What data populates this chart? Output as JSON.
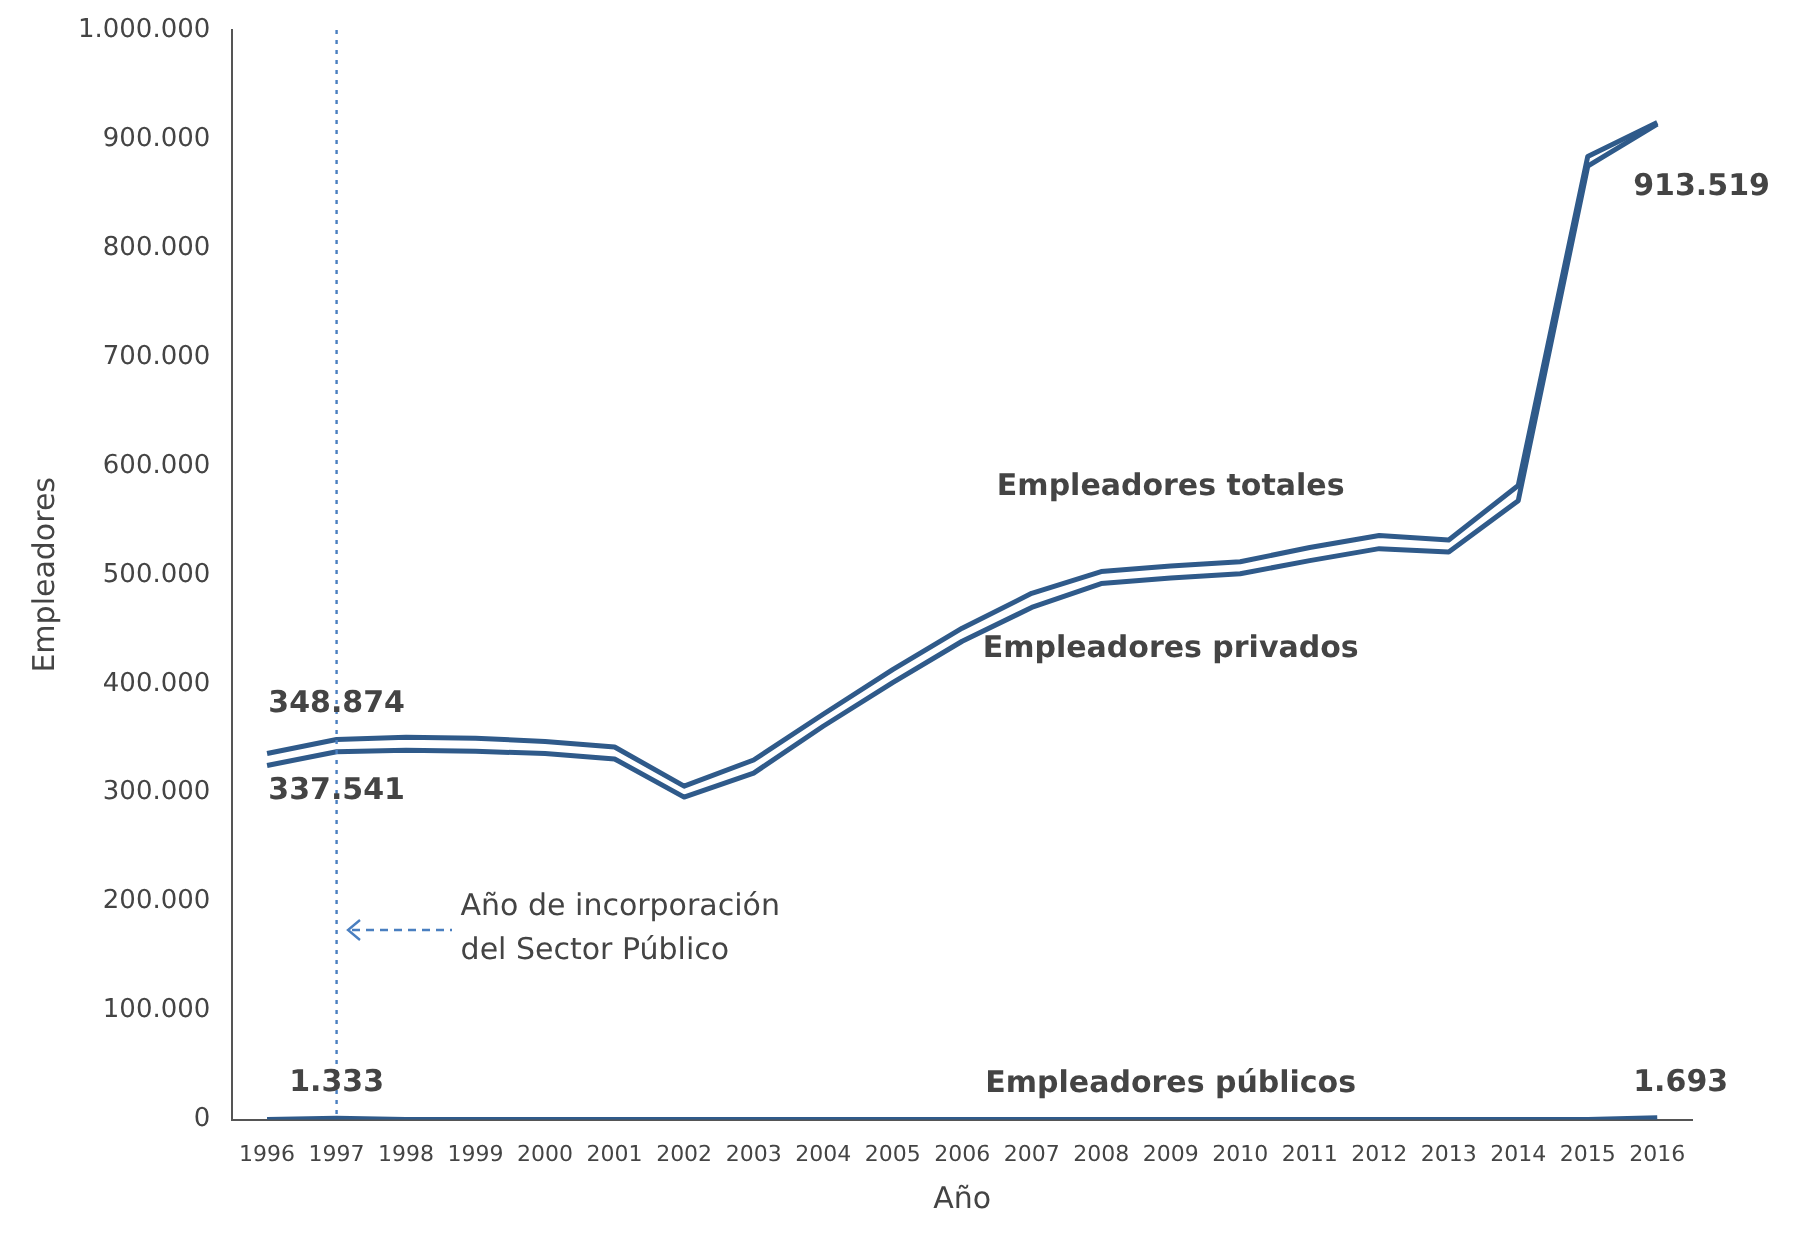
{
  "chart_data": {
    "type": "line",
    "xlabel": "Año",
    "ylabel": "Empleadores",
    "categories": [
      "1996",
      "1997",
      "1998",
      "1999",
      "2000",
      "2001",
      "2002",
      "2003",
      "2004",
      "2005",
      "2006",
      "2007",
      "2008",
      "2009",
      "2010",
      "2011",
      "2012",
      "2013",
      "2014",
      "2015",
      "2016"
    ],
    "series": [
      {
        "name": "Empleadores totales",
        "color": "#2f5a8a",
        "values": [
          336000,
          348874,
          351000,
          350000,
          347000,
          342000,
          306000,
          330000,
          372000,
          413000,
          451000,
          483000,
          503000,
          508000,
          512000,
          525000,
          536000,
          532000,
          582000,
          884000,
          915000
        ],
        "value_labels": [
          null,
          "348.874",
          null,
          null,
          null,
          null,
          null,
          null,
          null,
          null,
          null,
          null,
          null,
          null,
          null,
          null,
          null,
          null,
          null,
          null,
          null
        ]
      },
      {
        "name": "Empleadores privados",
        "color": "#2f5a8a",
        "values": [
          325000,
          337541,
          339000,
          338000,
          336000,
          331000,
          296000,
          318000,
          361000,
          401000,
          439000,
          470000,
          492000,
          497000,
          501000,
          513000,
          524000,
          521000,
          568000,
          875000,
          913519
        ],
        "value_labels": [
          null,
          "337.541",
          null,
          null,
          null,
          null,
          null,
          null,
          null,
          null,
          null,
          null,
          null,
          null,
          null,
          null,
          null,
          null,
          null,
          null,
          "913.519"
        ]
      },
      {
        "name": "Empleadores públicos",
        "color": "#2f5a8a",
        "values": [
          0,
          1333,
          0,
          0,
          0,
          0,
          0,
          0,
          0,
          0,
          0,
          0,
          0,
          0,
          0,
          0,
          0,
          0,
          0,
          0,
          1693
        ],
        "value_labels": [
          null,
          "1.333",
          null,
          null,
          null,
          null,
          null,
          null,
          null,
          null,
          null,
          null,
          null,
          null,
          null,
          null,
          null,
          null,
          null,
          null,
          "1.693"
        ]
      }
    ],
    "ylim": [
      0,
      1000000
    ],
    "yticks": [
      0,
      {
        "value": 100000,
        "label": "100.000"
      },
      {
        "value": 200000,
        "label": "200.000"
      },
      {
        "value": 300000,
        "label": "300.000"
      },
      {
        "value": 400000,
        "label": "400.000"
      },
      {
        "value": 500000,
        "label": "500.000"
      },
      {
        "value": 600000,
        "label": "600.000"
      },
      {
        "value": 700000,
        "label": "700.000"
      },
      {
        "value": 800000,
        "label": "800.000"
      },
      {
        "value": 900000,
        "label": "900.000"
      },
      {
        "value": 1000000,
        "label": "1.000.000"
      }
    ],
    "ref_lines": [
      {
        "axis": "x",
        "value": "1997",
        "label": "Año de incorporación\ndel Sector Público",
        "color": "#4a7fc0",
        "line_style": "dotted"
      }
    ],
    "grid": false,
    "legend": false,
    "marker": "none",
    "line_style": "solid"
  }
}
